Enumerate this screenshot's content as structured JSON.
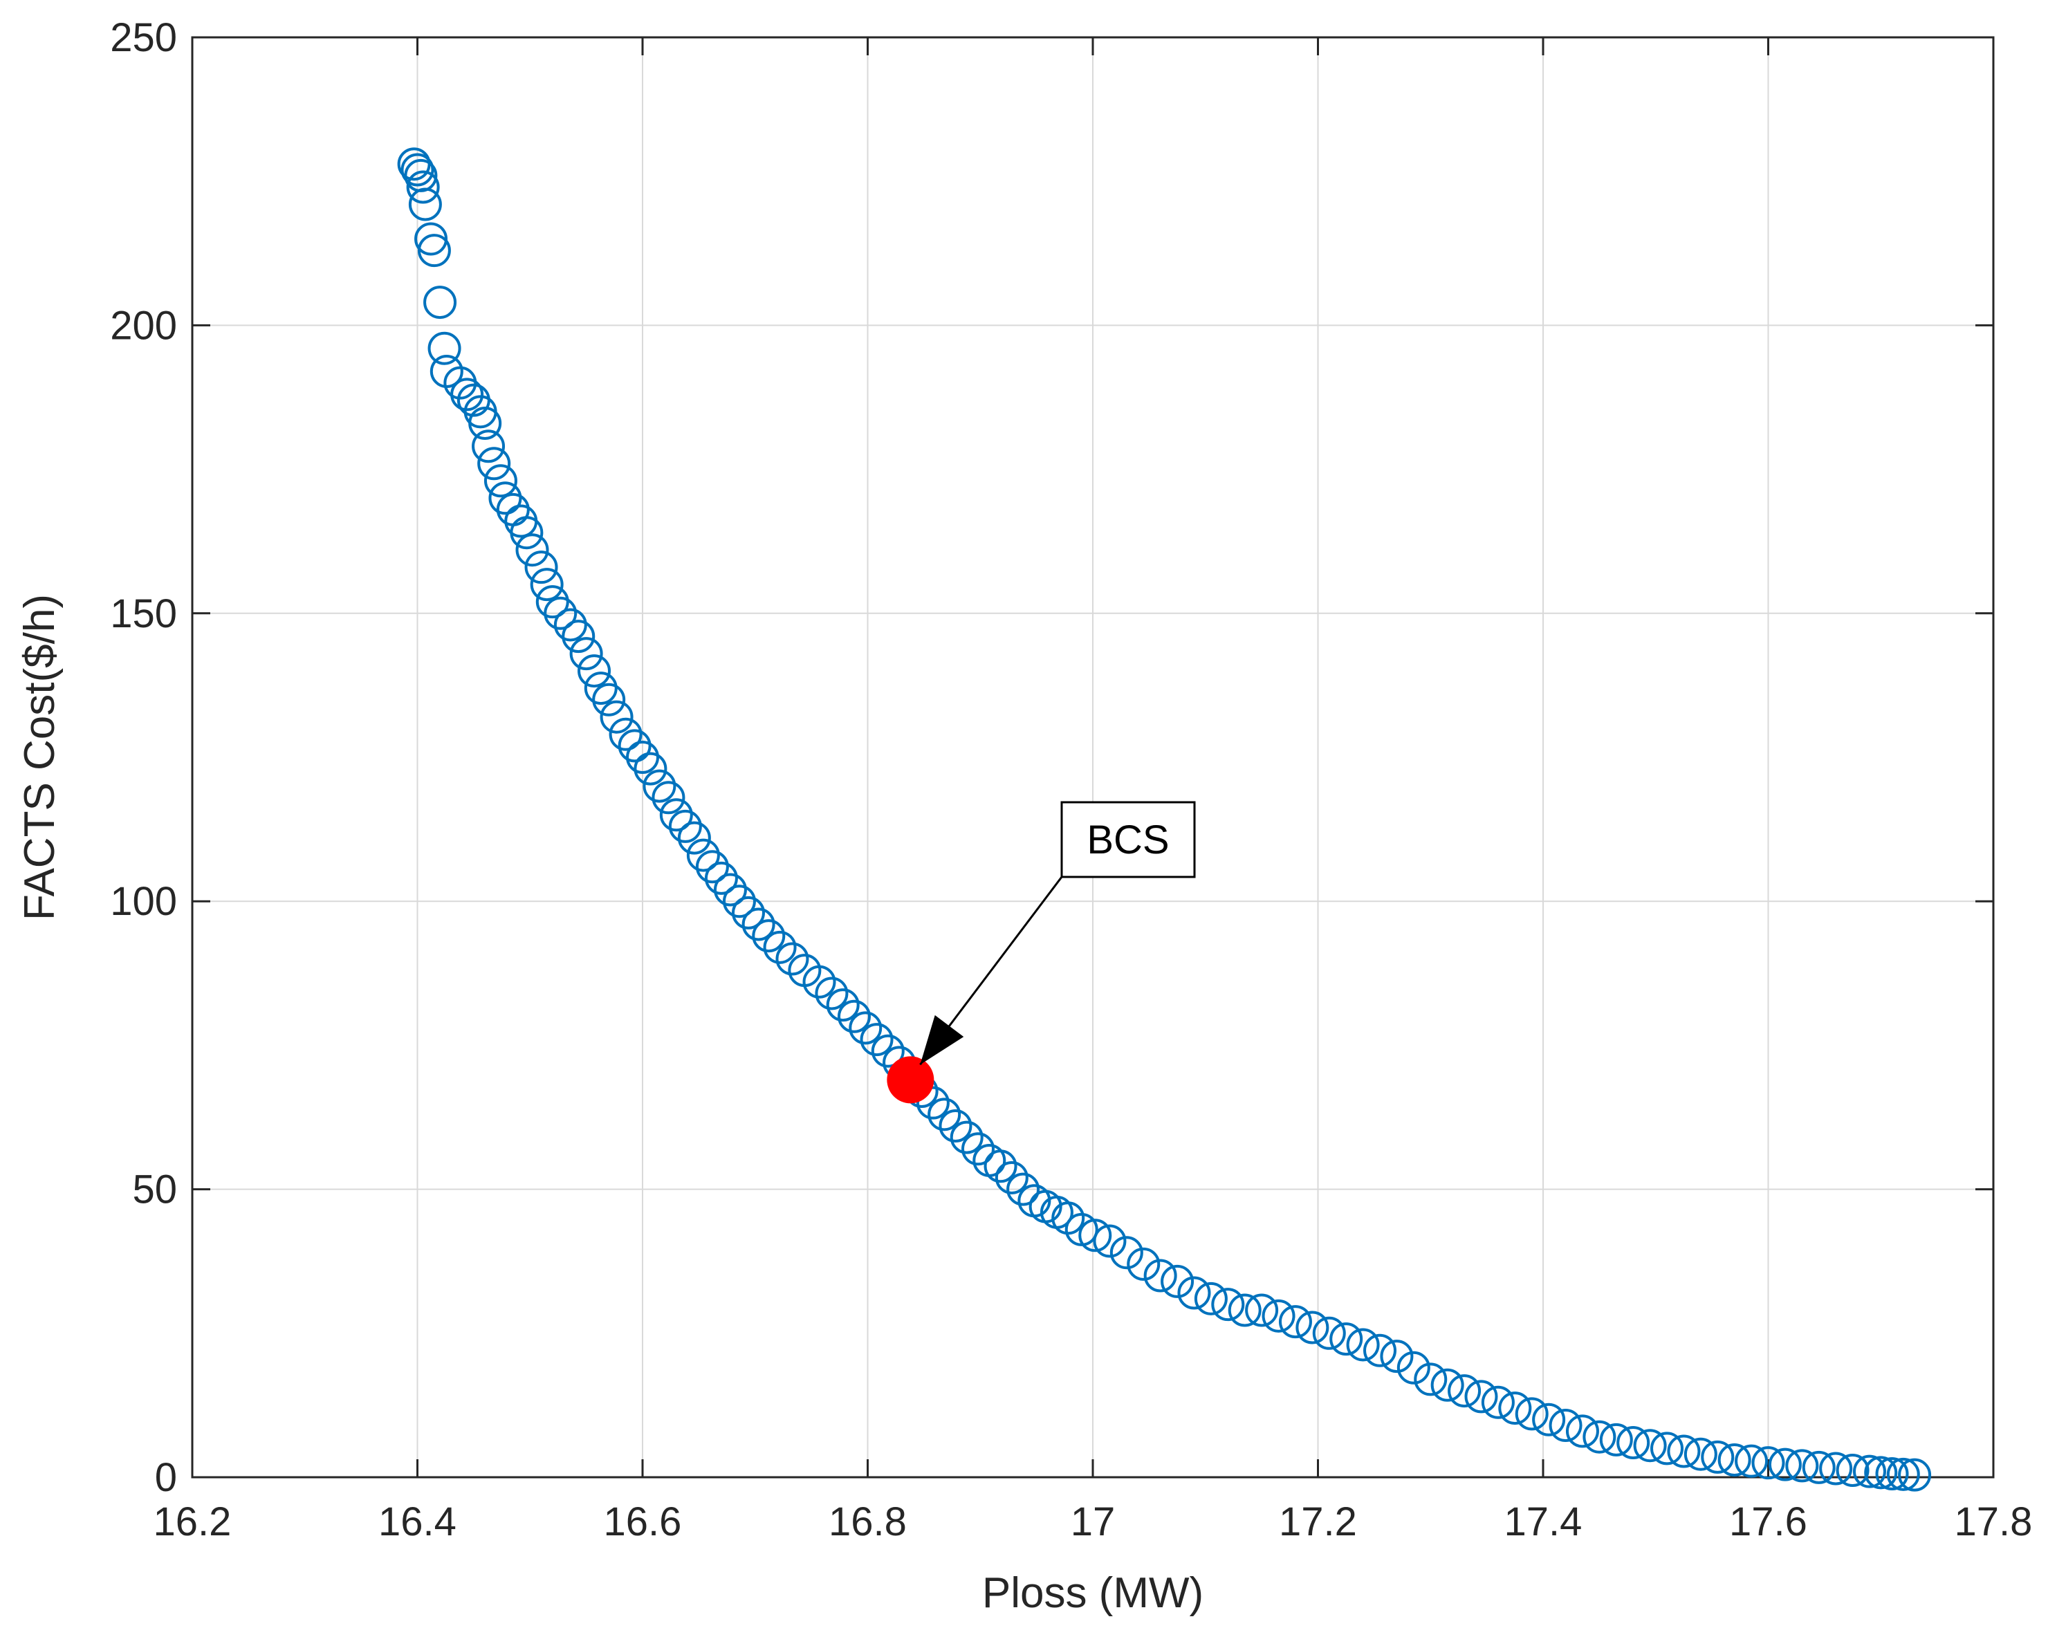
{
  "chart_data": {
    "type": "scatter",
    "title": "",
    "xlabel": "Ploss (MW)",
    "ylabel": "FACTS Cost($/h)",
    "xlim": [
      16.2,
      17.8
    ],
    "ylim": [
      0,
      250
    ],
    "xticks": [
      "16.2",
      "16.4",
      "16.6",
      "16.8",
      "17",
      "17.2",
      "17.4",
      "17.6",
      "17.8"
    ],
    "yticks": [
      "0",
      "50",
      "100",
      "150",
      "200",
      "250"
    ],
    "grid": true,
    "marker_color": "#0072BD",
    "highlight_color": "#FF0000",
    "series": [
      {
        "marker": "open-circle",
        "points": [
          [
            16.397,
            228
          ],
          [
            16.4,
            227
          ],
          [
            16.403,
            226
          ],
          [
            16.405,
            224
          ],
          [
            16.407,
            221
          ],
          [
            16.412,
            215
          ],
          [
            16.415,
            213
          ],
          [
            16.42,
            204
          ],
          [
            16.424,
            196
          ],
          [
            16.426,
            192
          ],
          [
            16.438,
            190
          ],
          [
            16.444,
            188
          ],
          [
            16.45,
            187
          ],
          [
            16.456,
            185
          ],
          [
            16.46,
            183
          ],
          [
            16.463,
            179
          ],
          [
            16.468,
            176
          ],
          [
            16.474,
            173
          ],
          [
            16.478,
            170
          ],
          [
            16.485,
            168
          ],
          [
            16.492,
            166
          ],
          [
            16.497,
            164
          ],
          [
            16.502,
            161
          ],
          [
            16.51,
            158
          ],
          [
            16.515,
            155
          ],
          [
            16.52,
            152
          ],
          [
            16.527,
            150
          ],
          [
            16.536,
            148
          ],
          [
            16.543,
            146
          ],
          [
            16.55,
            143
          ],
          [
            16.557,
            140
          ],
          [
            16.563,
            137
          ],
          [
            16.57,
            135
          ],
          [
            16.577,
            132
          ],
          [
            16.585,
            129
          ],
          [
            16.593,
            127
          ],
          [
            16.6,
            125
          ],
          [
            16.607,
            123
          ],
          [
            16.615,
            120
          ],
          [
            16.623,
            118
          ],
          [
            16.63,
            115
          ],
          [
            16.638,
            113
          ],
          [
            16.646,
            111
          ],
          [
            16.654,
            108
          ],
          [
            16.662,
            106
          ],
          [
            16.67,
            104
          ],
          [
            16.678,
            102
          ],
          [
            16.686,
            100
          ],
          [
            16.694,
            98
          ],
          [
            16.703,
            96
          ],
          [
            16.712,
            94
          ],
          [
            16.722,
            92
          ],
          [
            16.733,
            90
          ],
          [
            16.744,
            88
          ],
          [
            16.757,
            86
          ],
          [
            16.768,
            84
          ],
          [
            16.778,
            82
          ],
          [
            16.788,
            80
          ],
          [
            16.798,
            78
          ],
          [
            16.808,
            76
          ],
          [
            16.818,
            74
          ],
          [
            16.828,
            72
          ],
          [
            16.848,
            67
          ],
          [
            16.858,
            65
          ],
          [
            16.868,
            63
          ],
          [
            16.878,
            61
          ],
          [
            16.888,
            59
          ],
          [
            16.898,
            57
          ],
          [
            16.908,
            55
          ],
          [
            16.918,
            54
          ],
          [
            16.928,
            52
          ],
          [
            16.938,
            50
          ],
          [
            16.948,
            48
          ],
          [
            16.958,
            47
          ],
          [
            16.968,
            46
          ],
          [
            16.978,
            45
          ],
          [
            16.99,
            43
          ],
          [
            17.002,
            42
          ],
          [
            17.015,
            41
          ],
          [
            17.03,
            39
          ],
          [
            17.045,
            37
          ],
          [
            17.06,
            35
          ],
          [
            17.075,
            34
          ],
          [
            17.09,
            32
          ],
          [
            17.105,
            31
          ],
          [
            17.12,
            30
          ],
          [
            17.135,
            29
          ],
          [
            17.15,
            29
          ],
          [
            17.165,
            28
          ],
          [
            17.18,
            27
          ],
          [
            17.195,
            26
          ],
          [
            17.21,
            25
          ],
          [
            17.225,
            24
          ],
          [
            17.24,
            23
          ],
          [
            17.255,
            22
          ],
          [
            17.27,
            21
          ],
          [
            17.285,
            19
          ],
          [
            17.3,
            17
          ],
          [
            17.315,
            16
          ],
          [
            17.33,
            15
          ],
          [
            17.345,
            14
          ],
          [
            17.36,
            13
          ],
          [
            17.375,
            12
          ],
          [
            17.39,
            11
          ],
          [
            17.405,
            10
          ],
          [
            17.42,
            9
          ],
          [
            17.435,
            8
          ],
          [
            17.45,
            7
          ],
          [
            17.465,
            6.5
          ],
          [
            17.48,
            6
          ],
          [
            17.495,
            5.5
          ],
          [
            17.51,
            5
          ],
          [
            17.525,
            4.5
          ],
          [
            17.54,
            4
          ],
          [
            17.555,
            3.5
          ],
          [
            17.57,
            3
          ],
          [
            17.585,
            2.8
          ],
          [
            17.6,
            2.5
          ],
          [
            17.615,
            2.2
          ],
          [
            17.63,
            2
          ],
          [
            17.645,
            1.7
          ],
          [
            17.66,
            1.5
          ],
          [
            17.675,
            1.2
          ],
          [
            17.69,
            1
          ],
          [
            17.7,
            0.8
          ],
          [
            17.71,
            0.6
          ],
          [
            17.72,
            0.5
          ],
          [
            17.73,
            0.4
          ]
        ]
      }
    ],
    "highlight": {
      "x": 16.838,
      "y": 69
    },
    "annotation": {
      "text": "BCS",
      "arrow_to": [
        16.838,
        69
      ]
    }
  }
}
